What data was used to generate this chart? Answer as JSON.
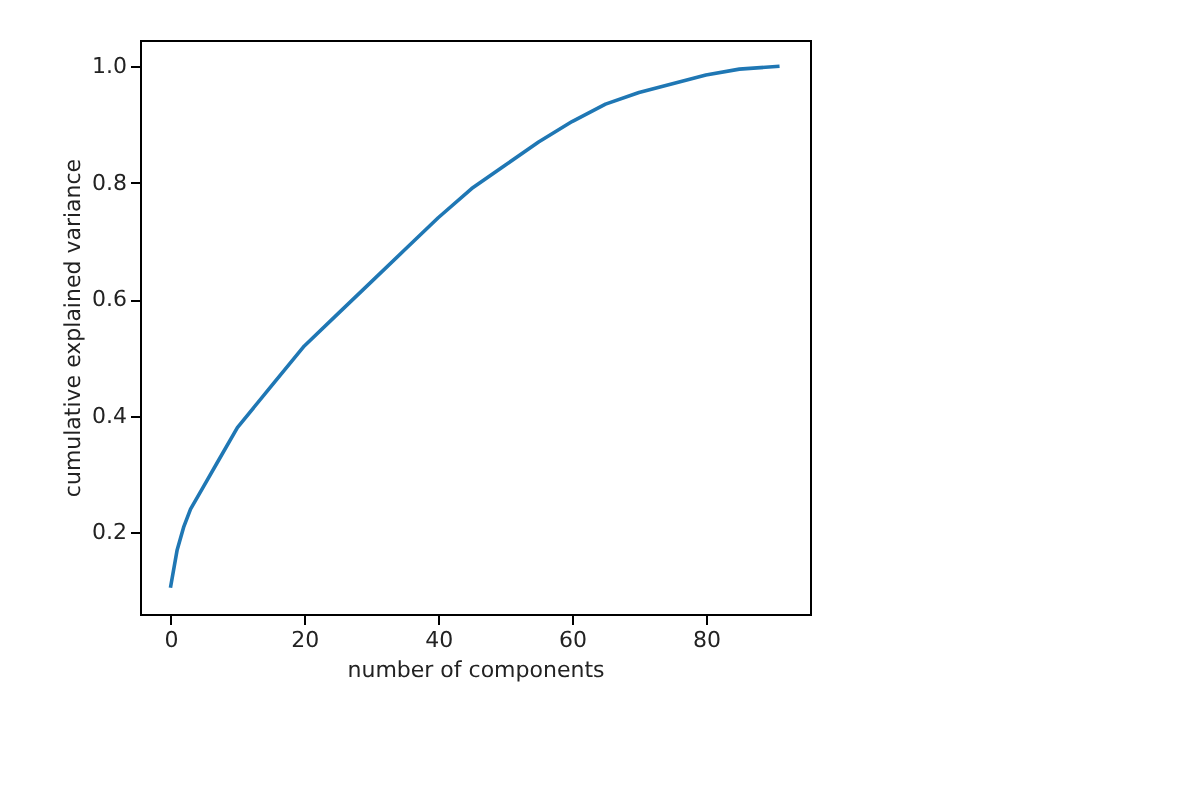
{
  "chart_data": {
    "type": "line",
    "xlabel": "number of components",
    "ylabel": "cumulative explained variance",
    "x": [
      0,
      1,
      2,
      3,
      5,
      7,
      10,
      15,
      20,
      25,
      30,
      35,
      40,
      45,
      50,
      55,
      60,
      65,
      70,
      75,
      80,
      85,
      91
    ],
    "series": [
      {
        "color": "#1f77b4",
        "values": [
          0.105,
          0.17,
          0.21,
          0.24,
          0.28,
          0.32,
          0.38,
          0.45,
          0.52,
          0.575,
          0.63,
          0.685,
          0.74,
          0.79,
          0.83,
          0.87,
          0.905,
          0.935,
          0.955,
          0.97,
          0.985,
          0.995,
          1.0
        ]
      }
    ],
    "xlim": [
      -4.55,
      95.55
    ],
    "ylim": [
      0.06,
      1.045
    ],
    "xticks": [
      0,
      20,
      40,
      60,
      80
    ],
    "yticks": [
      0.2,
      0.4,
      0.6,
      0.8,
      {
        "value": 1,
        "label": "1.0"
      }
    ],
    "grid": false,
    "legend": false,
    "marker": "none",
    "line_style": "solid"
  }
}
